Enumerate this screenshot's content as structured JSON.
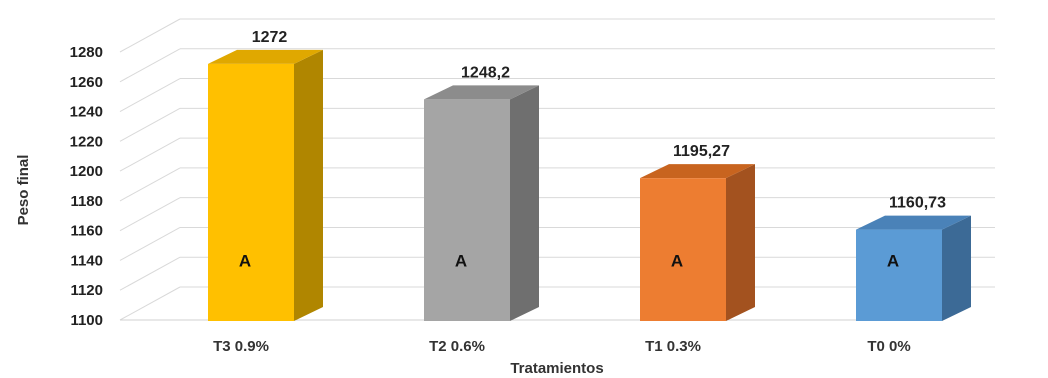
{
  "chart_data": {
    "type": "bar",
    "style": "3d-column",
    "categories": [
      "T3 0.9%",
      "T2 0.6%",
      "T1 0.3%",
      "T0 0%"
    ],
    "values": [
      1272,
      1248.2,
      1195.27,
      1160.73
    ],
    "value_labels": [
      "1272",
      "1248,2",
      "1195,27",
      "1160,73"
    ],
    "significance_labels": [
      "A",
      "A",
      "A",
      "A"
    ],
    "colors": [
      "#ffc000",
      "#a5a5a5",
      "#ed7d31",
      "#5b9bd5"
    ],
    "side_colors": [
      "#b08600",
      "#6f6f6f",
      "#a3521f",
      "#3c6a96"
    ],
    "top_colors": [
      "#e0a800",
      "#8c8c8c",
      "#c8641f",
      "#4a82b8"
    ],
    "xlabel": "Tratamientos",
    "ylabel": "Peso final",
    "ylim": [
      1100,
      1280
    ],
    "yticks": [
      1100,
      1120,
      1140,
      1160,
      1180,
      1200,
      1220,
      1240,
      1260,
      1280
    ],
    "grid": true,
    "legend": "none"
  }
}
